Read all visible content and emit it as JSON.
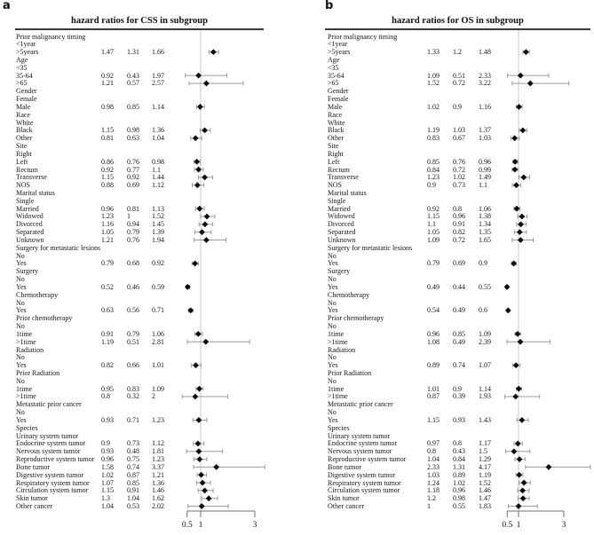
{
  "figure": {
    "panels": [
      {
        "letter": "a"
      },
      {
        "letter": "b"
      }
    ]
  },
  "colors": {
    "marker": "#0d0d0d",
    "ci_line": "#9b9b9b",
    "ref_line": "#c9c9c9",
    "axis_line": "#6f6f6f",
    "header_rule": "#3a3a3a",
    "text": "#141414"
  },
  "chart_data": [
    {
      "type": "forest",
      "panel": "a",
      "title": "hazard ratios for CSS in subgroup",
      "xlabel": "",
      "x_scale": "linear",
      "xlim": [
        0.5,
        3
      ],
      "ref_line": 1,
      "grid": false,
      "x_ticks": [
        {
          "value": 0.5,
          "label": "0.5"
        },
        {
          "value": 1,
          "label": "1"
        },
        {
          "value": 3,
          "label": "3"
        }
      ],
      "columns": [
        "hazard_ratio",
        "ci_lower",
        "ci_upper"
      ],
      "rows": [
        {
          "label": "Prior malignancy timing"
        },
        {
          "label": "<1year"
        },
        {
          "label": ">5years",
          "hr": "1.47",
          "lo": "1.31",
          "hi": "1.66"
        },
        {
          "label": "Age"
        },
        {
          "label": "<35"
        },
        {
          "label": "35-64",
          "hr": "0.92",
          "lo": "0.43",
          "hi": "1.97"
        },
        {
          "label": ">65",
          "hr": "1.21",
          "lo": "0.57",
          "hi": "2.57"
        },
        {
          "label": "Gender"
        },
        {
          "label": "Female"
        },
        {
          "label": "Male",
          "hr": "0.98",
          "lo": "0.85",
          "hi": "1.14"
        },
        {
          "label": "Race"
        },
        {
          "label": "White"
        },
        {
          "label": "Black",
          "hr": "1.15",
          "lo": "0.98",
          "hi": "1.36"
        },
        {
          "label": "Other",
          "hr": "0.81",
          "lo": "0.63",
          "hi": "1.04"
        },
        {
          "label": "Site"
        },
        {
          "label": "Right"
        },
        {
          "label": "Left",
          "hr": "0.86",
          "lo": "0.76",
          "hi": "0.98"
        },
        {
          "label": "Rectum",
          "hr": "0.92",
          "lo": "0.77",
          "hi": "1.1"
        },
        {
          "label": "Transverse",
          "hr": "1.15",
          "lo": "0.92",
          "hi": "1.44"
        },
        {
          "label": "NOS",
          "hr": "0.88",
          "lo": "0.69",
          "hi": "1.12"
        },
        {
          "label": "Marital status"
        },
        {
          "label": "Single"
        },
        {
          "label": "Married",
          "hr": "0.96",
          "lo": "0.81",
          "hi": "1.13"
        },
        {
          "label": "Widowed",
          "hr": "1.23",
          "lo": "1",
          "hi": "1.52"
        },
        {
          "label": "Divorced",
          "hr": "1.16",
          "lo": "0.94",
          "hi": "1.45"
        },
        {
          "label": "Separated",
          "hr": "1.05",
          "lo": "0.79",
          "hi": "1.39"
        },
        {
          "label": "Unknown",
          "hr": "1.21",
          "lo": "0.76",
          "hi": "1.94"
        },
        {
          "label": "Surgery for metastatic lesions"
        },
        {
          "label": "No"
        },
        {
          "label": "Yes",
          "hr": "0.79",
          "lo": "0.68",
          "hi": "0.92"
        },
        {
          "label": "Surgery"
        },
        {
          "label": "No"
        },
        {
          "label": "Yes",
          "hr": "0.52",
          "lo": "0.46",
          "hi": "0.59"
        },
        {
          "label": "Chemotherapy"
        },
        {
          "label": "No"
        },
        {
          "label": "Yes",
          "hr": "0.63",
          "lo": "0.56",
          "hi": "0.71"
        },
        {
          "label": "Prior chemotherapy"
        },
        {
          "label": "No"
        },
        {
          "label": "1time",
          "hr": "0.91",
          "lo": "0.79",
          "hi": "1.06"
        },
        {
          "label": ">1time",
          "hr": "1.19",
          "lo": "0.51",
          "hi": "2.81"
        },
        {
          "label": "Radiation"
        },
        {
          "label": "No"
        },
        {
          "label": "Yes",
          "hr": "0.82",
          "lo": "0.66",
          "hi": "1.01"
        },
        {
          "label": "Prior Radiation"
        },
        {
          "label": "No"
        },
        {
          "label": "1time",
          "hr": "0.95",
          "lo": "0.83",
          "hi": "1.09"
        },
        {
          "label": ">1time",
          "hr": "0.8",
          "lo": "0.32",
          "hi": "2"
        },
        {
          "label": "Metastatic prior cancer"
        },
        {
          "label": "No"
        },
        {
          "label": "Yes",
          "hr": "0.93",
          "lo": "0.71",
          "hi": "1.23"
        },
        {
          "label": "Species"
        },
        {
          "label": "Urinary system tumor"
        },
        {
          "label": "Endocrine system tumor",
          "hr": "0.9",
          "lo": "0.73",
          "hi": "1.12"
        },
        {
          "label": "Nervous system tumor",
          "hr": "0.93",
          "lo": "0.48",
          "hi": "1.81"
        },
        {
          "label": "Reproductive system tumor",
          "hr": "0.96",
          "lo": "0.75",
          "hi": "1.23"
        },
        {
          "label": "Bone tumor",
          "hr": "1.58",
          "lo": "0.74",
          "hi": "3.37"
        },
        {
          "label": "Digestive system tumor",
          "hr": "1.02",
          "lo": "0.87",
          "hi": "1.21"
        },
        {
          "label": "Respiratory system tumor",
          "hr": "1.07",
          "lo": "0.85",
          "hi": "1.36"
        },
        {
          "label": "Circulation system tumor",
          "hr": "1.15",
          "lo": "0.91",
          "hi": "1.46"
        },
        {
          "label": "Skin tumor",
          "hr": "1.3",
          "lo": "1.04",
          "hi": "1.62"
        },
        {
          "label": "Other cancer",
          "hr": "1.04",
          "lo": "0.53",
          "hi": "2.02"
        }
      ]
    },
    {
      "type": "forest",
      "panel": "b",
      "title": "hazard ratios for OS in subgroup",
      "xlabel": "",
      "x_scale": "linear",
      "xlim": [
        0.5,
        3
      ],
      "ref_line": 1,
      "grid": false,
      "x_ticks": [
        {
          "value": 0.5,
          "label": "0.5"
        },
        {
          "value": 1,
          "label": "1"
        },
        {
          "value": 3,
          "label": "3"
        }
      ],
      "columns": [
        "hazard_ratio",
        "ci_lower",
        "ci_upper"
      ],
      "rows": [
        {
          "label": "Prior malignancy timing"
        },
        {
          "label": "<1year"
        },
        {
          "label": ">5years",
          "hr": "1.33",
          "lo": "1.2",
          "hi": "1.48"
        },
        {
          "label": "Age"
        },
        {
          "label": "<35"
        },
        {
          "label": "35-64",
          "hr": "1.09",
          "lo": "0.51",
          "hi": "2.33"
        },
        {
          "label": ">65",
          "hr": "1.52",
          "lo": "0.72",
          "hi": "3.22"
        },
        {
          "label": "Gender"
        },
        {
          "label": "Female"
        },
        {
          "label": "Male",
          "hr": "1.02",
          "lo": "0.9",
          "hi": "1.16"
        },
        {
          "label": "Race"
        },
        {
          "label": "White"
        },
        {
          "label": "Black",
          "hr": "1.19",
          "lo": "1.03",
          "hi": "1.37"
        },
        {
          "label": "Other",
          "hr": "0.83",
          "lo": "0.67",
          "hi": "1.03"
        },
        {
          "label": "Site"
        },
        {
          "label": "Right"
        },
        {
          "label": "Left",
          "hr": "0.85",
          "lo": "0.76",
          "hi": "0.96"
        },
        {
          "label": "Rectum",
          "hr": "0.84",
          "lo": "0.72",
          "hi": "0.99"
        },
        {
          "label": "Transverse",
          "hr": "1.23",
          "lo": "1.02",
          "hi": "1.49"
        },
        {
          "label": "NOS",
          "hr": "0.9",
          "lo": "0.73",
          "hi": "1.1"
        },
        {
          "label": "Marital status"
        },
        {
          "label": "Single"
        },
        {
          "label": "Married",
          "hr": "0.92",
          "lo": "0.8",
          "hi": "1.06"
        },
        {
          "label": "Widowed",
          "hr": "1.15",
          "lo": "0.96",
          "hi": "1.38"
        },
        {
          "label": "Divorced",
          "hr": "1.1",
          "lo": "0.91",
          "hi": "1.34"
        },
        {
          "label": "Separated",
          "hr": "1.05",
          "lo": "0.82",
          "hi": "1.35"
        },
        {
          "label": "Unknown",
          "hr": "1.09",
          "lo": "0.72",
          "hi": "1.65"
        },
        {
          "label": "Surgery for metastatic lesions"
        },
        {
          "label": "No"
        },
        {
          "label": "Yes",
          "hr": "0.79",
          "lo": "0.69",
          "hi": "0.9"
        },
        {
          "label": "Surgery"
        },
        {
          "label": "No"
        },
        {
          "label": "Yes",
          "hr": "0.49",
          "lo": "0.44",
          "hi": "0.55"
        },
        {
          "label": "Chemotherapy"
        },
        {
          "label": "No"
        },
        {
          "label": "Yes",
          "hr": "0.54",
          "lo": "0.49",
          "hi": "0.6"
        },
        {
          "label": "Prior chemotherapy"
        },
        {
          "label": "No"
        },
        {
          "label": "1time",
          "hr": "0.96",
          "lo": "0.85",
          "hi": "1.09"
        },
        {
          "label": ">1time",
          "hr": "1.08",
          "lo": "0.49",
          "hi": "2.39"
        },
        {
          "label": "Radiation"
        },
        {
          "label": "No"
        },
        {
          "label": "Yes",
          "hr": "0.89",
          "lo": "0.74",
          "hi": "1.07"
        },
        {
          "label": "Prior Radiation"
        },
        {
          "label": "No"
        },
        {
          "label": "1time",
          "hr": "1.01",
          "lo": "0.9",
          "hi": "1.14"
        },
        {
          "label": ">1time",
          "hr": "0.87",
          "lo": "0.39",
          "hi": "1.93"
        },
        {
          "label": "Metastatic prior cancer"
        },
        {
          "label": "No"
        },
        {
          "label": "Yes",
          "hr": "1.15",
          "lo": "0.93",
          "hi": "1.43"
        },
        {
          "label": "Species"
        },
        {
          "label": "Urinary system tumor"
        },
        {
          "label": "Endocrine system tumor",
          "hr": "0.97",
          "lo": "0.8",
          "hi": "1.17"
        },
        {
          "label": "Nervous system tumor",
          "hr": "0.8",
          "lo": "0.43",
          "hi": "1.5"
        },
        {
          "label": "Reproductive system tumor",
          "hr": "1.04",
          "lo": "0.84",
          "hi": "1.29"
        },
        {
          "label": "Bone tumor",
          "hr": "2.33",
          "lo": "1.31",
          "hi": "4.17"
        },
        {
          "label": "Digestive system tumor",
          "hr": "1.03",
          "lo": "0.89",
          "hi": "1.19"
        },
        {
          "label": "Respiratory system tumor",
          "hr": "1.24",
          "lo": "1.02",
          "hi": "1.52"
        },
        {
          "label": "Circulation system tumor",
          "hr": "1.18",
          "lo": "0.96",
          "hi": "1.46"
        },
        {
          "label": "Skin tumor",
          "hr": "1.2",
          "lo": "0.98",
          "hi": "1.47"
        },
        {
          "label": "Other cancer",
          "hr": "1",
          "lo": "0.55",
          "hi": "1.83"
        }
      ]
    }
  ]
}
